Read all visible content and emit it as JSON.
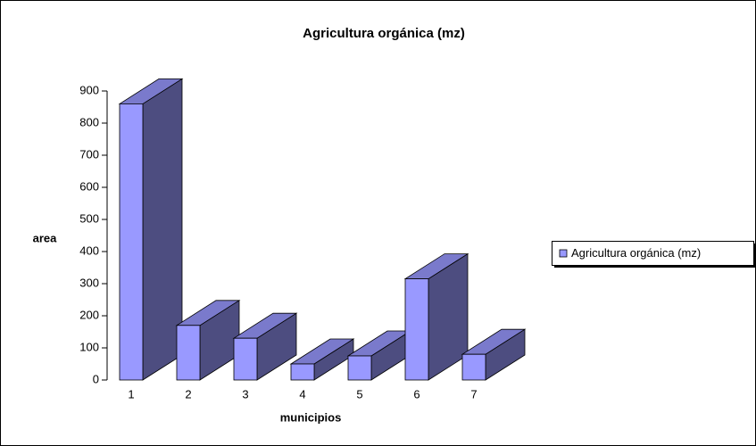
{
  "chart_data": {
    "type": "bar3d",
    "title": "Agricultura orgánica (mz)",
    "x_label": "municipios",
    "y_label": "area",
    "categories": [
      "1",
      "2",
      "3",
      "4",
      "5",
      "6",
      "7"
    ],
    "series": [
      {
        "name": "Agricultura orgánica (mz)",
        "color": "#9999ff",
        "values": [
          860,
          170,
          130,
          50,
          75,
          315,
          80
        ]
      }
    ],
    "ylim": [
      0,
      900
    ],
    "yticks": [
      0,
      100,
      200,
      300,
      400,
      500,
      600,
      700,
      800,
      900
    ],
    "legend": "right"
  }
}
